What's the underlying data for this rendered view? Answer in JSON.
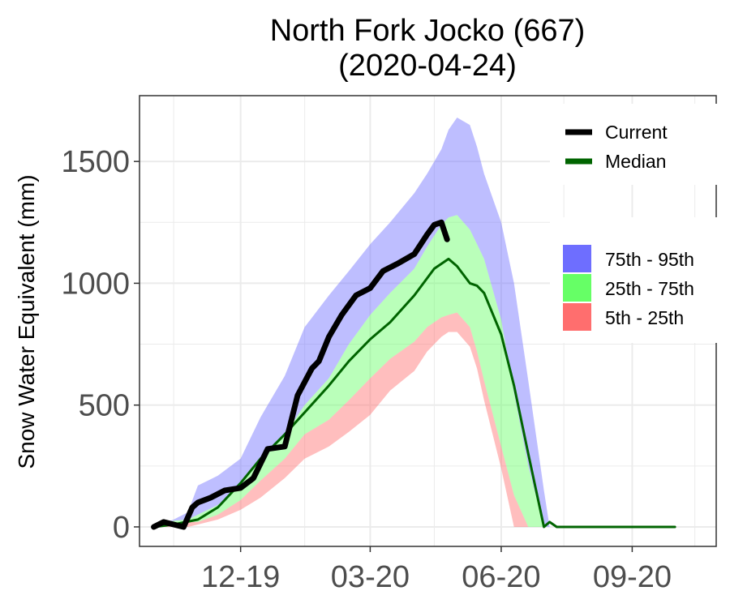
{
  "chart_data": {
    "type": "area",
    "title": "North Fork Jocko (667)",
    "subtitle": "(2020-04-24)",
    "xlabel": "",
    "ylabel": "Snow Water Equivalent (mm)",
    "x_tick_labels": [
      "12-19",
      "03-20",
      "06-20",
      "09-20"
    ],
    "x_tick_dates": [
      "2019-12-01",
      "2020-03-01",
      "2020-06-01",
      "2020-09-01"
    ],
    "y_ticks": [
      0,
      500,
      1000,
      1500
    ],
    "xlim": [
      "2019-09-21",
      "2020-10-30"
    ],
    "ylim": [
      -80,
      1770
    ],
    "grid": true,
    "legend_position": "right",
    "colors": {
      "band_75_95": "#6e6eff",
      "band_25_75": "#66ff66",
      "band_5_25": "#ff6e6e",
      "current": "#000000",
      "median": "#006400",
      "grid": "#ebebeb",
      "panel_border": "#333333"
    },
    "legend_lines": [
      {
        "label": "Current",
        "color": "#000000"
      },
      {
        "label": "Median",
        "color": "#006400"
      }
    ],
    "legend_bands": [
      {
        "label": "75th - 95th",
        "color": "#6e6eff"
      },
      {
        "label": "25th - 75th",
        "color": "#66ff66"
      },
      {
        "label": "5th - 25th",
        "color": "#ff6e6e"
      }
    ],
    "percentile_dates": [
      "2019-10-01",
      "2019-10-15",
      "2019-10-25",
      "2019-11-01",
      "2019-11-15",
      "2019-12-01",
      "2019-12-15",
      "2020-01-01",
      "2020-01-15",
      "2020-02-01",
      "2020-02-15",
      "2020-03-01",
      "2020-03-15",
      "2020-04-01",
      "2020-04-10",
      "2020-04-20",
      "2020-04-25",
      "2020-05-01",
      "2020-05-10",
      "2020-05-15",
      "2020-05-20",
      "2020-06-01",
      "2020-06-10",
      "2020-06-20",
      "2020-07-01",
      "2020-07-05",
      "2020-07-10",
      "2020-07-20",
      "2020-10-01"
    ],
    "p95": [
      0,
      30,
      60,
      170,
      210,
      280,
      450,
      620,
      820,
      950,
      1050,
      1160,
      1250,
      1370,
      1450,
      1550,
      1630,
      1680,
      1650,
      1560,
      1450,
      1250,
      1000,
      600,
      150,
      0,
      0,
      0,
      0
    ],
    "p75": [
      0,
      25,
      30,
      50,
      90,
      170,
      280,
      380,
      500,
      610,
      750,
      870,
      960,
      1060,
      1150,
      1240,
      1270,
      1280,
      1220,
      1160,
      1100,
      850,
      550,
      250,
      0,
      0,
      0,
      0,
      0
    ],
    "p25": [
      0,
      10,
      20,
      20,
      50,
      110,
      190,
      280,
      380,
      440,
      520,
      610,
      690,
      760,
      820,
      860,
      870,
      880,
      820,
      720,
      600,
      330,
      130,
      0,
      0,
      0,
      0,
      0,
      0
    ],
    "p5": [
      0,
      0,
      0,
      10,
      30,
      70,
      120,
      200,
      280,
      330,
      390,
      460,
      560,
      640,
      720,
      780,
      800,
      800,
      740,
      650,
      520,
      240,
      0,
      0,
      0,
      0,
      0,
      0,
      0
    ],
    "median_dates": [
      "2019-10-01",
      "2019-10-15",
      "2019-11-01",
      "2019-11-15",
      "2019-12-01",
      "2019-12-15",
      "2020-01-01",
      "2020-01-15",
      "2020-02-01",
      "2020-02-15",
      "2020-03-01",
      "2020-03-15",
      "2020-04-01",
      "2020-04-15",
      "2020-04-25",
      "2020-05-01",
      "2020-05-10",
      "2020-05-15",
      "2020-05-20",
      "2020-06-01",
      "2020-06-10",
      "2020-06-20",
      "2020-07-01",
      "2020-07-05",
      "2020-07-10",
      "2020-10-01"
    ],
    "median": [
      0,
      10,
      30,
      80,
      180,
      280,
      380,
      470,
      580,
      680,
      770,
      840,
      950,
      1060,
      1100,
      1070,
      1000,
      990,
      960,
      790,
      580,
      300,
      0,
      20,
      0,
      0
    ],
    "current_dates": [
      "2019-10-01",
      "2019-10-08",
      "2019-10-15",
      "2019-10-22",
      "2019-10-28",
      "2019-11-01",
      "2019-11-10",
      "2019-11-20",
      "2019-12-01",
      "2019-12-10",
      "2019-12-20",
      "2020-01-01",
      "2020-01-10",
      "2020-01-20",
      "2020-01-25",
      "2020-02-01",
      "2020-02-10",
      "2020-02-20",
      "2020-03-01",
      "2020-03-10",
      "2020-03-20",
      "2020-04-01",
      "2020-04-10",
      "2020-04-15",
      "2020-04-20",
      "2020-04-24"
    ],
    "current": [
      0,
      20,
      10,
      0,
      80,
      100,
      120,
      150,
      160,
      200,
      320,
      330,
      540,
      650,
      680,
      780,
      870,
      950,
      980,
      1050,
      1080,
      1120,
      1200,
      1240,
      1250,
      1180
    ]
  }
}
